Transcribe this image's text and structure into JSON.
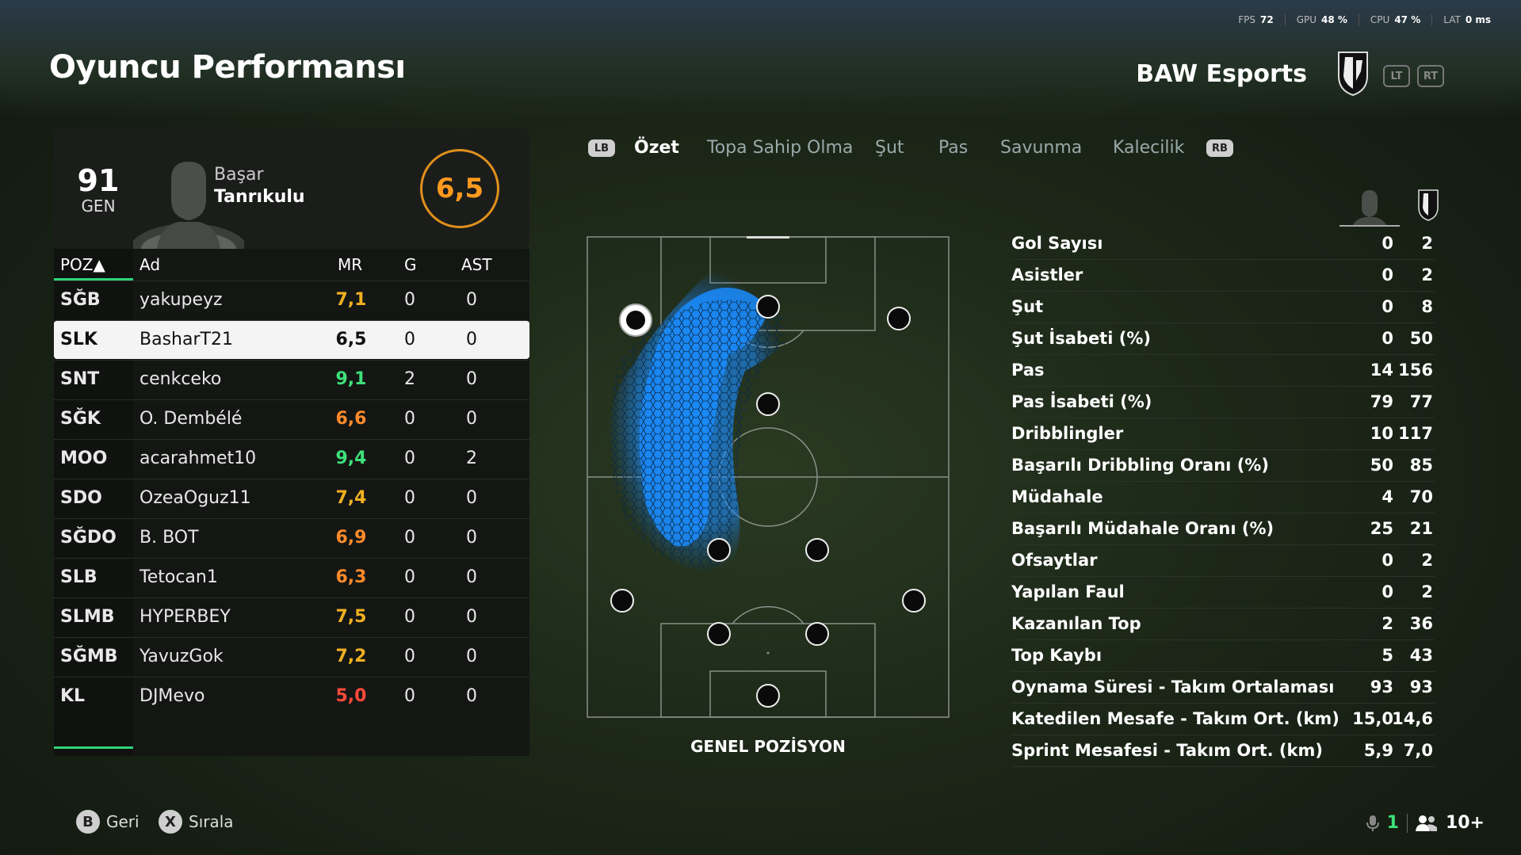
{
  "perf": {
    "fps_label": "FPS",
    "fps": "72",
    "gpu_label": "GPU",
    "gpu": "48 %",
    "cpu_label": "CPU",
    "cpu": "47 %",
    "lat_label": "LAT",
    "lat": "0 ms"
  },
  "header": {
    "title": "Oyuncu Performansı",
    "team": "BAW Esports",
    "lt": "LT",
    "rt": "RT"
  },
  "player_card": {
    "gen": "91",
    "gen_label": "GEN",
    "first_name": "Başar",
    "last_name": "Tanrıkulu",
    "rating": "6,5"
  },
  "table": {
    "headers": {
      "pos": "POZ▲",
      "name": "Ad",
      "mr": "MR",
      "g": "G",
      "ast": "AST"
    },
    "rows": [
      {
        "pos": "SĞB",
        "name": "yakupeyz",
        "mr": "7,1",
        "g": "0",
        "ast": "0",
        "color": "#f0b020"
      },
      {
        "pos": "SLK",
        "name": "BasharT21",
        "mr": "6,5",
        "g": "0",
        "ast": "0",
        "color": "#111111"
      },
      {
        "pos": "SNT",
        "name": "cenkceko",
        "mr": "9,1",
        "g": "2",
        "ast": "0",
        "color": "#3ee07a"
      },
      {
        "pos": "SĞK",
        "name": "O. Dembélé",
        "mr": "6,6",
        "g": "0",
        "ast": "0",
        "color": "#ff8a2a"
      },
      {
        "pos": "MOO",
        "name": "acarahmet10",
        "mr": "9,4",
        "g": "0",
        "ast": "2",
        "color": "#3ee07a"
      },
      {
        "pos": "SDO",
        "name": "OzeaOguz11",
        "mr": "7,4",
        "g": "0",
        "ast": "0",
        "color": "#f0b020"
      },
      {
        "pos": "SĞDO",
        "name": "B. BOT",
        "mr": "6,9",
        "g": "0",
        "ast": "0",
        "color": "#ff8a2a"
      },
      {
        "pos": "SLB",
        "name": "Tetocan1",
        "mr": "6,3",
        "g": "0",
        "ast": "0",
        "color": "#ff8a2a"
      },
      {
        "pos": "SLMB",
        "name": "HYPERBEY",
        "mr": "7,5",
        "g": "0",
        "ast": "0",
        "color": "#f0b020"
      },
      {
        "pos": "SĞMB",
        "name": "YavuzGok",
        "mr": "7,2",
        "g": "0",
        "ast": "0",
        "color": "#f0b020"
      },
      {
        "pos": "KL",
        "name": "DJMevo",
        "mr": "5,0",
        "g": "0",
        "ast": "0",
        "color": "#ff4a3a"
      }
    ]
  },
  "tabs": {
    "lb": "LB",
    "rb": "RB",
    "items": [
      "Özet",
      "Topa Sahip Olma",
      "Şut",
      "Pas",
      "Savunma",
      "Kalecilik"
    ]
  },
  "pitch": {
    "label": "GENEL POZİSYON",
    "heat_color": "#1a8cff"
  },
  "stats": [
    {
      "label": "Gol Sayısı",
      "player": "0",
      "team": "2"
    },
    {
      "label": "Asistler",
      "player": "0",
      "team": "2"
    },
    {
      "label": "Şut",
      "player": "0",
      "team": "8"
    },
    {
      "label": "Şut İsabeti (%)",
      "player": "0",
      "team": "50"
    },
    {
      "label": "Pas",
      "player": "14",
      "team": "156"
    },
    {
      "label": "Pas İsabeti (%)",
      "player": "79",
      "team": "77"
    },
    {
      "label": "Dribblingler",
      "player": "10",
      "team": "117"
    },
    {
      "label": "Başarılı Dribbling Oranı (%)",
      "player": "50",
      "team": "85"
    },
    {
      "label": "Müdahale",
      "player": "4",
      "team": "70"
    },
    {
      "label": "Başarılı Müdahale Oranı (%)",
      "player": "25",
      "team": "21"
    },
    {
      "label": "Ofsaytlar",
      "player": "0",
      "team": "2"
    },
    {
      "label": "Yapılan Faul",
      "player": "0",
      "team": "2"
    },
    {
      "label": "Kazanılan Top",
      "player": "2",
      "team": "36"
    },
    {
      "label": "Top Kaybı",
      "player": "5",
      "team": "43"
    },
    {
      "label": "Oynama Süresi - Takım Ortalaması",
      "player": "93",
      "team": "93"
    },
    {
      "label": "Katedilen Mesafe - Takım Ort. (km)",
      "player": "15,0",
      "team": "14,6"
    },
    {
      "label": "Sprint Mesafesi - Takım Ort. (km)",
      "player": "5,9",
      "team": "7,0"
    }
  ],
  "footer": {
    "back_key": "B",
    "back_label": "Geri",
    "sort_key": "X",
    "sort_label": "Sırala",
    "mic_count": "1",
    "people": "10+"
  }
}
